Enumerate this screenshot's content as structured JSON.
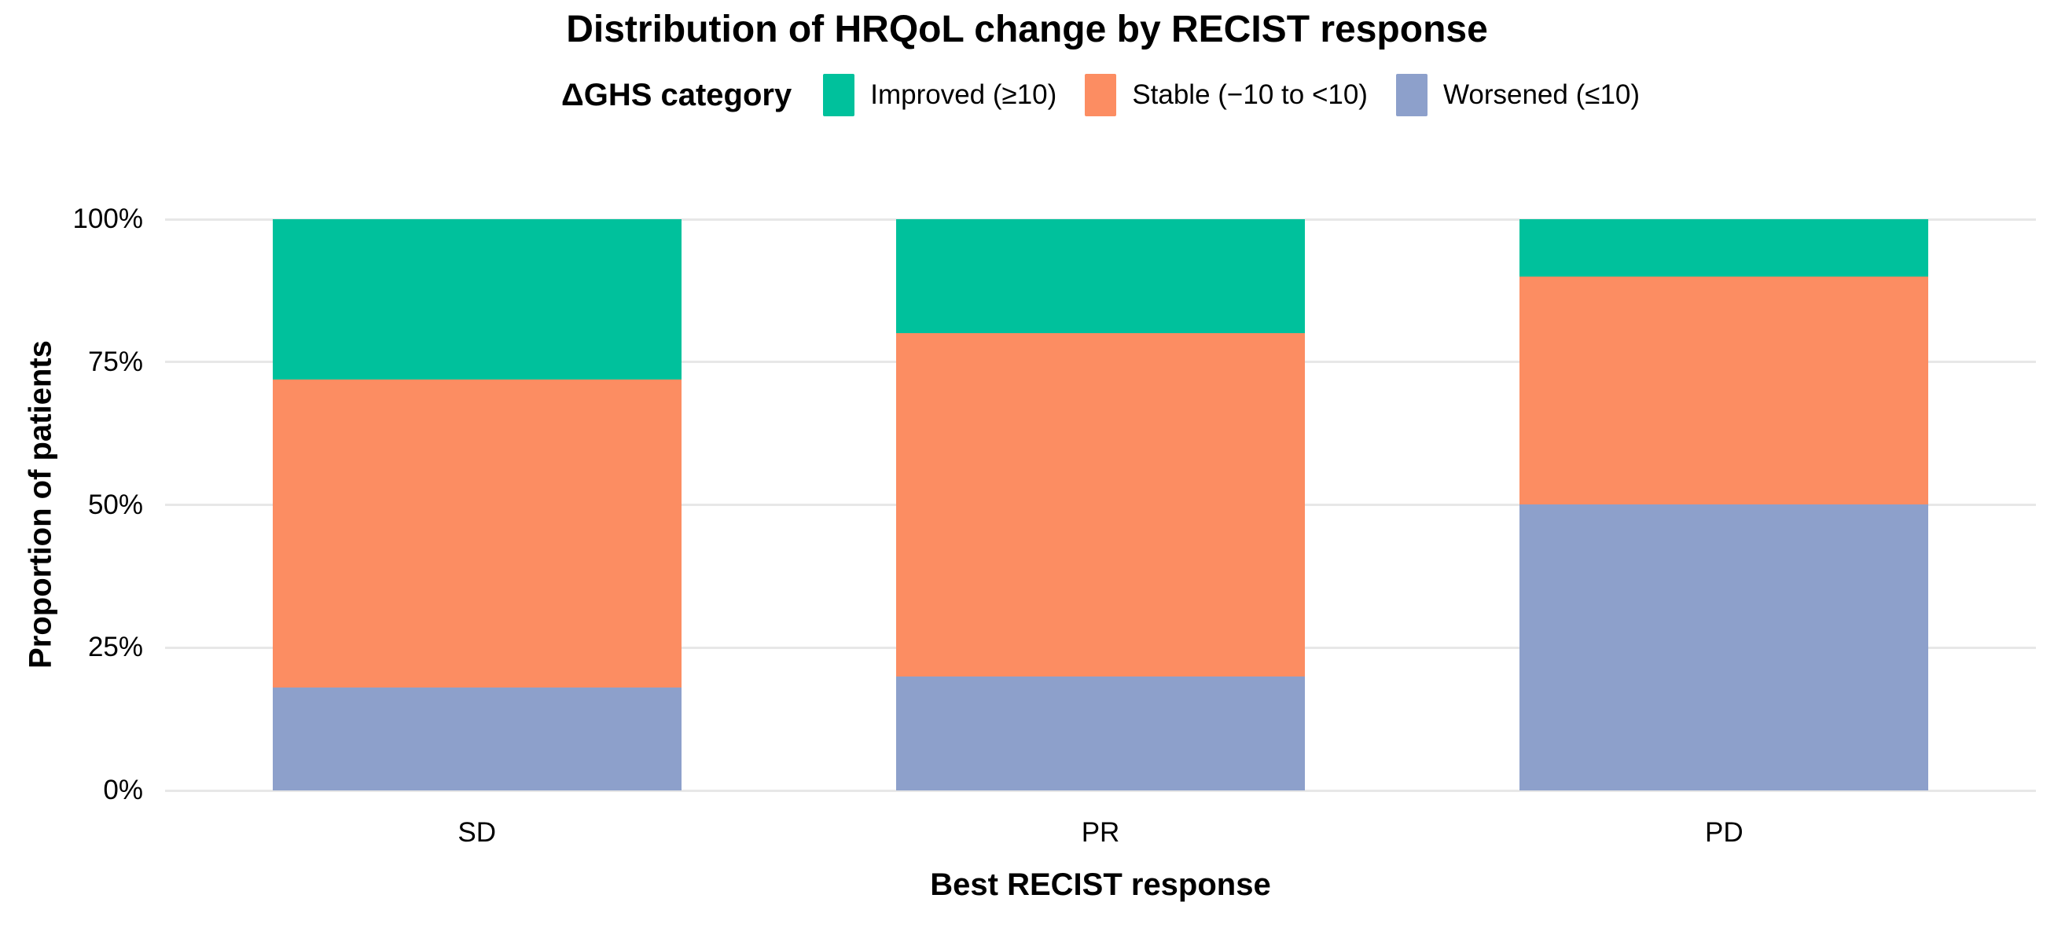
{
  "title": "Distribution of HRQoL change by RECIST response",
  "legend": {
    "title": "ΔGHS category",
    "position": "top"
  },
  "axes": {
    "x_title": "Best RECIST response",
    "y_title": "Proportion of patients"
  },
  "colors": {
    "background": "#ffffff",
    "gridline": "#e7e7e7",
    "text": "#000000",
    "improved": "#00c19c",
    "stable": "#fc8d62",
    "worsened": "#8da0cb"
  },
  "chart_data": {
    "type": "bar",
    "stacked": true,
    "normalized_percent": true,
    "title": "Distribution of HRQoL change by RECIST response",
    "xlabel": "Best RECIST response",
    "ylabel": "Proportion of patients",
    "legend_title": "ΔGHS category",
    "legend_position": "top",
    "grid": "horizontal",
    "ylim": [
      0,
      100
    ],
    "categories": [
      "SD",
      "PR",
      "PD"
    ],
    "series": [
      {
        "name": "Improved (≥10)",
        "key": "improved",
        "color": "#00c19c",
        "values": [
          28,
          20,
          10
        ]
      },
      {
        "name": "Stable (−10 to <10)",
        "key": "stable",
        "color": "#fc8d62",
        "values": [
          54,
          60,
          40
        ]
      },
      {
        "name": "Worsened (≤10)",
        "key": "worsened",
        "color": "#8da0cb",
        "values": [
          18,
          20,
          50
        ]
      }
    ],
    "y_ticks": [
      {
        "percent": 0,
        "label": "0%"
      },
      {
        "percent": 25,
        "label": "25%"
      },
      {
        "percent": 50,
        "label": "50%"
      },
      {
        "percent": 75,
        "label": "75%"
      },
      {
        "percent": 100,
        "label": "100%"
      }
    ]
  }
}
